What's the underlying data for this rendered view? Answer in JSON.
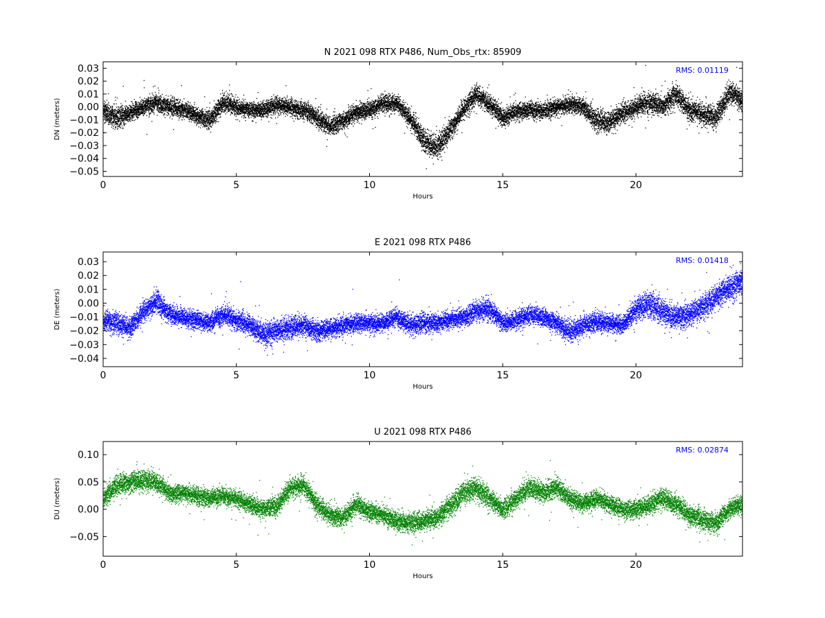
{
  "chart_data": [
    {
      "type": "scatter",
      "title": "N 2021 098 RTX  P486, Num_Obs_rtx: 85909",
      "xlabel": "Hours",
      "ylabel": "DN (meters)",
      "xlim": [
        0,
        24
      ],
      "ylim": [
        -0.054,
        0.035
      ],
      "xticks": [
        0,
        5,
        10,
        15,
        20
      ],
      "xtick_labels": [
        "0",
        "5",
        "10",
        "15",
        "20"
      ],
      "yticks": [
        -0.05,
        -0.04,
        -0.03,
        -0.02,
        -0.01,
        0.0,
        0.01,
        0.02,
        0.03
      ],
      "ytick_labels": [
        "−0.05",
        "−0.04",
        "−0.03",
        "−0.02",
        "−0.01",
        "0.00",
        "0.01",
        "0.02",
        "0.03"
      ],
      "annotation": "RMS:  0.01119",
      "color": "#000000",
      "annotation_color": "#0000ff",
      "grid": false,
      "series": [
        {
          "x": [
            0,
            0.5,
            1,
            1.5,
            2,
            2.5,
            3,
            3.5,
            4,
            4.5,
            5,
            5.5,
            6,
            6.5,
            7,
            7.5,
            8,
            8.5,
            9,
            9.5,
            10,
            10.5,
            11,
            11.5,
            12,
            12.5,
            13,
            13.5,
            14,
            14.5,
            15,
            15.5,
            16,
            16.5,
            17,
            17.5,
            18,
            18.5,
            19,
            19.5,
            20,
            20.5,
            21,
            21.5,
            22,
            22.5,
            23,
            23.5,
            24
          ],
          "y": [
            -0.003,
            -0.008,
            -0.004,
            0.0,
            0.004,
            0.0,
            -0.002,
            -0.006,
            -0.01,
            0.004,
            0.0,
            -0.002,
            -0.002,
            0.002,
            0.0,
            -0.002,
            -0.008,
            -0.015,
            -0.01,
            -0.004,
            -0.002,
            0.003,
            0.003,
            -0.008,
            -0.025,
            -0.032,
            -0.018,
            -0.002,
            0.01,
            0.002,
            -0.008,
            -0.003,
            -0.002,
            -0.003,
            0.0,
            0.002,
            0.0,
            -0.01,
            -0.012,
            -0.004,
            0.0,
            0.004,
            0.0,
            0.01,
            -0.002,
            -0.005,
            -0.008,
            0.012,
            0.004
          ],
          "spread": [
            0.008,
            0.01,
            0.007,
            0.007,
            0.008,
            0.008,
            0.007,
            0.007,
            0.008,
            0.008,
            0.007,
            0.007,
            0.007,
            0.007,
            0.007,
            0.007,
            0.008,
            0.008,
            0.007,
            0.007,
            0.007,
            0.007,
            0.007,
            0.008,
            0.009,
            0.01,
            0.009,
            0.008,
            0.008,
            0.008,
            0.008,
            0.007,
            0.007,
            0.007,
            0.007,
            0.007,
            0.007,
            0.009,
            0.009,
            0.008,
            0.008,
            0.009,
            0.008,
            0.01,
            0.009,
            0.009,
            0.009,
            0.009,
            0.008
          ]
        }
      ]
    },
    {
      "type": "scatter",
      "title": "E 2021 098 RTX  P486",
      "xlabel": "Hours",
      "ylabel": "DE (meters)",
      "xlim": [
        0,
        24
      ],
      "ylim": [
        -0.046,
        0.037
      ],
      "xticks": [
        0,
        5,
        10,
        15,
        20
      ],
      "xtick_labels": [
        "0",
        "5",
        "10",
        "15",
        "20"
      ],
      "yticks": [
        -0.04,
        -0.03,
        -0.02,
        -0.01,
        0.0,
        0.01,
        0.02,
        0.03
      ],
      "ytick_labels": [
        "−0.04",
        "−0.03",
        "−0.02",
        "−0.01",
        "0.00",
        "0.01",
        "0.02",
        "0.03"
      ],
      "annotation": "RMS:  0.01418",
      "color": "#0000ff",
      "annotation_color": "#0000ff",
      "grid": false,
      "series": [
        {
          "x": [
            0,
            0.5,
            1,
            1.5,
            2,
            2.5,
            3,
            3.5,
            4,
            4.5,
            5,
            5.5,
            6,
            6.5,
            7,
            7.5,
            8,
            8.5,
            9,
            9.5,
            10,
            10.5,
            11,
            11.5,
            12,
            12.5,
            13,
            13.5,
            14,
            14.5,
            15,
            15.5,
            16,
            16.5,
            17,
            17.5,
            18,
            18.5,
            19,
            19.5,
            20,
            20.5,
            21,
            21.5,
            22,
            22.5,
            23,
            23.5,
            24
          ],
          "y": [
            -0.012,
            -0.014,
            -0.018,
            -0.006,
            0.002,
            -0.008,
            -0.01,
            -0.012,
            -0.014,
            -0.008,
            -0.012,
            -0.016,
            -0.022,
            -0.02,
            -0.018,
            -0.016,
            -0.02,
            -0.018,
            -0.016,
            -0.014,
            -0.014,
            -0.014,
            -0.01,
            -0.016,
            -0.014,
            -0.014,
            -0.012,
            -0.01,
            -0.006,
            -0.004,
            -0.014,
            -0.012,
            -0.008,
            -0.01,
            -0.014,
            -0.02,
            -0.016,
            -0.014,
            -0.014,
            -0.016,
            -0.004,
            0.0,
            -0.006,
            -0.01,
            -0.008,
            -0.002,
            0.004,
            0.012,
            0.016
          ],
          "spread": [
            0.008,
            0.008,
            0.008,
            0.008,
            0.009,
            0.008,
            0.007,
            0.007,
            0.007,
            0.008,
            0.008,
            0.008,
            0.009,
            0.009,
            0.009,
            0.008,
            0.008,
            0.008,
            0.007,
            0.007,
            0.007,
            0.007,
            0.007,
            0.008,
            0.008,
            0.007,
            0.007,
            0.007,
            0.009,
            0.008,
            0.007,
            0.007,
            0.007,
            0.007,
            0.007,
            0.009,
            0.008,
            0.008,
            0.007,
            0.007,
            0.009,
            0.011,
            0.01,
            0.009,
            0.009,
            0.009,
            0.009,
            0.01,
            0.01
          ]
        }
      ]
    },
    {
      "type": "scatter",
      "title": "U 2021 098 RTX  P486",
      "xlabel": "Hours",
      "ylabel": "DU (meters)",
      "xlim": [
        0,
        24
      ],
      "ylim": [
        -0.086,
        0.124
      ],
      "xticks": [
        0,
        5,
        10,
        15,
        20
      ],
      "xtick_labels": [
        "0",
        "5",
        "10",
        "15",
        "20"
      ],
      "yticks": [
        -0.05,
        0.0,
        0.05,
        0.1
      ],
      "ytick_labels": [
        "−0.05",
        "0.00",
        "0.05",
        "0.10"
      ],
      "annotation": "RMS:  0.02874",
      "color": "#008000",
      "annotation_color": "#0000ff",
      "grid": false,
      "series": [
        {
          "x": [
            0,
            0.5,
            1,
            1.5,
            2,
            2.5,
            3,
            3.5,
            4,
            4.5,
            5,
            5.5,
            6,
            6.5,
            7,
            7.5,
            8,
            8.5,
            9,
            9.5,
            10,
            10.5,
            11,
            11.5,
            12,
            12.5,
            13,
            13.5,
            14,
            14.5,
            15,
            15.5,
            16,
            16.5,
            17,
            17.5,
            18,
            18.5,
            19,
            19.5,
            20,
            20.5,
            21,
            21.5,
            22,
            22.5,
            23,
            23.5,
            24
          ],
          "y": [
            0.02,
            0.045,
            0.05,
            0.055,
            0.05,
            0.03,
            0.03,
            0.025,
            0.02,
            0.025,
            0.02,
            0.01,
            0.0,
            0.005,
            0.04,
            0.045,
            0.01,
            -0.01,
            -0.015,
            0.01,
            -0.005,
            -0.01,
            -0.02,
            -0.025,
            -0.02,
            -0.015,
            0.005,
            0.03,
            0.04,
            0.02,
            0.0,
            0.02,
            0.04,
            0.03,
            0.04,
            0.02,
            0.01,
            0.02,
            0.01,
            0.0,
            0.0,
            0.01,
            0.02,
            0.01,
            -0.01,
            -0.02,
            -0.025,
            0.0,
            0.01
          ],
          "spread": [
            0.018,
            0.02,
            0.022,
            0.02,
            0.02,
            0.018,
            0.017,
            0.017,
            0.017,
            0.018,
            0.017,
            0.018,
            0.019,
            0.019,
            0.019,
            0.019,
            0.019,
            0.018,
            0.018,
            0.019,
            0.018,
            0.018,
            0.019,
            0.02,
            0.019,
            0.019,
            0.02,
            0.022,
            0.022,
            0.02,
            0.02,
            0.02,
            0.02,
            0.02,
            0.02,
            0.018,
            0.018,
            0.018,
            0.018,
            0.018,
            0.018,
            0.02,
            0.02,
            0.019,
            0.019,
            0.02,
            0.02,
            0.018,
            0.018
          ]
        }
      ]
    }
  ]
}
